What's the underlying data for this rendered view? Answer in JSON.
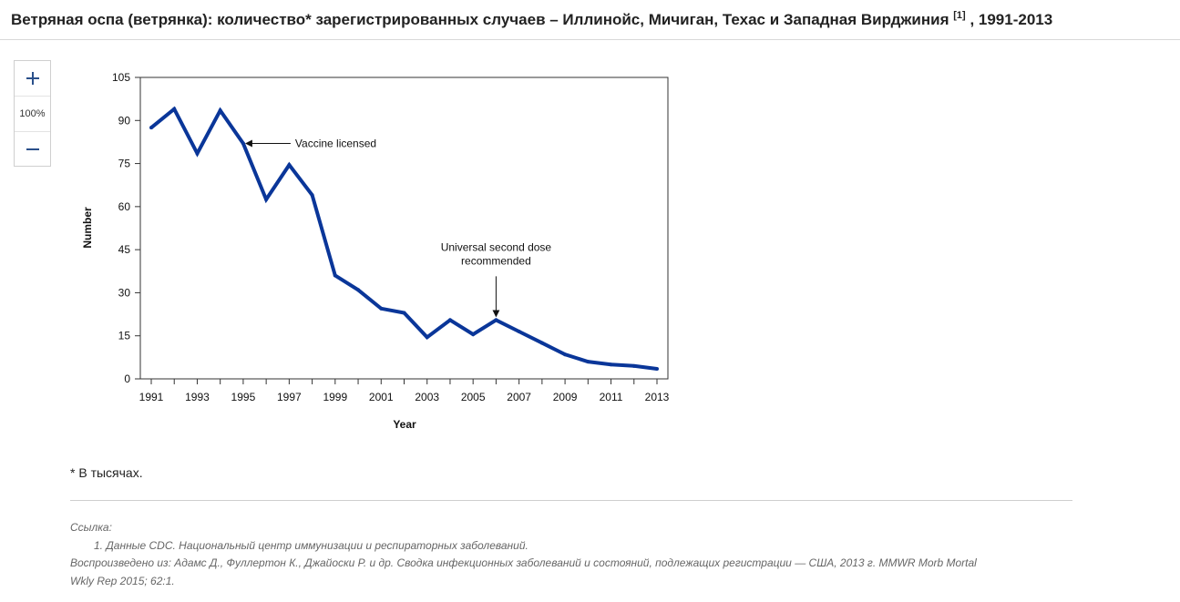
{
  "header": {
    "title": "Ветряная оспа (ветрянка): количество* зарегистрированных случаев – Иллинойс, Мичиган, Техас и Западная Вирджиния",
    "ref_mark": "[1]",
    "years": ", 1991-2013"
  },
  "zoom": {
    "in_symbol": "+",
    "level": "100%",
    "out_symbol": "−",
    "in_icon": "plus-icon",
    "out_icon": "minus-icon"
  },
  "chart_data": {
    "type": "line",
    "title": "",
    "xlabel": "Year",
    "ylabel": "Number",
    "xlim": [
      1991,
      2013
    ],
    "ylim": [
      0,
      105
    ],
    "x_ticks": [
      1991,
      1993,
      1995,
      1997,
      1999,
      2001,
      2003,
      2005,
      2007,
      2009,
      2011,
      2013
    ],
    "y_ticks": [
      0,
      15,
      30,
      45,
      60,
      75,
      90,
      105
    ],
    "grid": false,
    "x": [
      1991,
      1992,
      1993,
      1994,
      1995,
      1996,
      1997,
      1998,
      1999,
      2000,
      2001,
      2002,
      2003,
      2004,
      2005,
      2006,
      2007,
      2008,
      2009,
      2010,
      2011,
      2012,
      2013
    ],
    "series": [
      {
        "values": [
          87.5,
          94,
          78.5,
          93.5,
          82,
          62.5,
          74.5,
          64,
          36,
          31,
          24.5,
          23,
          14.5,
          20.5,
          15.5,
          20.5,
          16.5,
          12.5,
          8.5,
          6,
          5,
          4.5,
          3.5
        ],
        "color": "#0a3699"
      }
    ],
    "annotations": [
      {
        "text": "Vaccine licensed",
        "x": 1995,
        "y": 82
      },
      {
        "text": "Universal second dose recommended",
        "lines": [
          "Universal second dose",
          "recommended"
        ],
        "x": 2006,
        "y": 20.5
      }
    ]
  },
  "footnote": "* В тысячах.",
  "references": {
    "label": "Ссылка:",
    "items": [
      "1. Данные CDC. Национальный центр иммунизации и респираторных заболеваний."
    ],
    "reproduced_line1": "Воспроизведено из: Адамс Д., Фуллертон К., Джайоски Р. и др. Сводка инфекционных заболеваний и состояний, подлежащих регистрации — США, 2013 г. MMWR Morb Mortal",
    "reproduced_line2": "Wkly Rep 2015; 62:1."
  }
}
